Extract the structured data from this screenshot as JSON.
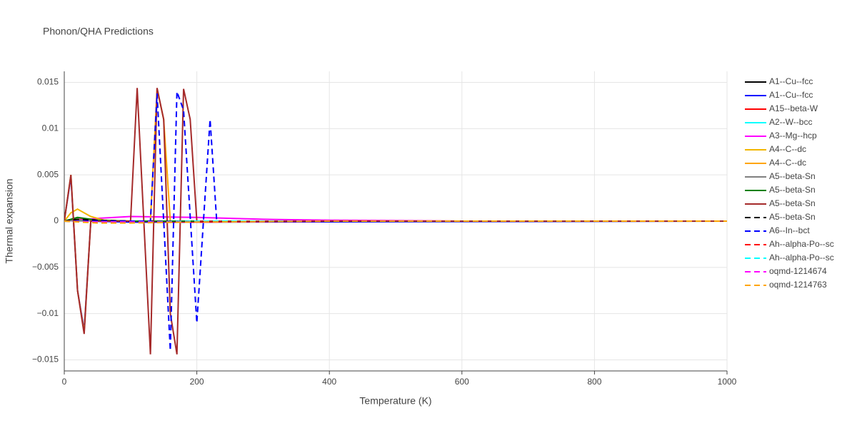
{
  "chart_data": {
    "type": "line",
    "title": "Phonon/QHA Predictions",
    "xlabel": "Temperature (K)",
    "ylabel": "Thermal expansion",
    "xlim": [
      0,
      1000
    ],
    "xticks": [
      0,
      200,
      400,
      600,
      800,
      1000
    ],
    "ylim": [
      -0.0162,
      0.0162
    ],
    "yticks": [
      {
        "value": -0.015,
        "label": "−0.015"
      },
      {
        "value": -0.01,
        "label": "−0.01"
      },
      {
        "value": -0.005,
        "label": "−0.005"
      },
      0,
      0.005,
      0.01,
      0.015
    ],
    "grid": true,
    "legend": "right",
    "series": [
      {
        "name": "A1--Cu--fcc",
        "color": "#000000",
        "dash": "solid",
        "x": [
          0,
          10,
          20,
          50,
          100,
          200,
          400,
          1000
        ],
        "values": [
          0,
          0.0001,
          0.0001,
          0,
          -0.0001,
          -0.0001,
          0,
          0
        ]
      },
      {
        "name": "A1--Cu--fcc",
        "color": "#0000ff",
        "dash": "solid",
        "x": [
          0,
          10,
          20,
          30,
          40,
          100,
          200,
          1000
        ],
        "values": [
          0,
          0.0048,
          -0.0075,
          -0.0118,
          0,
          -0.0001,
          -0.0001,
          0
        ]
      },
      {
        "name": "A15--beta-W",
        "color": "#ff0000",
        "dash": "solid",
        "x": [
          0,
          20,
          50,
          100,
          200,
          400,
          1000
        ],
        "values": [
          0,
          0.0002,
          0.0001,
          0,
          -0.0001,
          0,
          0
        ]
      },
      {
        "name": "A2--W--bcc",
        "color": "#00ffff",
        "dash": "solid",
        "x": [
          0,
          20,
          50,
          100,
          200,
          1000
        ],
        "values": [
          0,
          0.0001,
          0,
          0,
          0,
          0
        ]
      },
      {
        "name": "A3--Mg--hcp",
        "color": "#ff00ff",
        "dash": "solid",
        "x": [
          0,
          20,
          50,
          100,
          200,
          300,
          400,
          600,
          1000
        ],
        "values": [
          0,
          0.0001,
          0.0003,
          0.0005,
          0.0004,
          0.0002,
          0.0001,
          0,
          0
        ]
      },
      {
        "name": "A4--C--dc",
        "color": "#f2b600",
        "dash": "solid",
        "x": [
          0,
          10,
          20,
          30,
          40,
          60,
          100,
          200,
          1000
        ],
        "values": [
          0,
          0.0009,
          0.0013,
          0.0009,
          0.0005,
          0.0001,
          0,
          0,
          0
        ]
      },
      {
        "name": "A4--C--dc",
        "color": "#ffa500",
        "dash": "solid",
        "x": [
          0,
          10,
          20,
          30,
          40,
          130,
          140,
          150,
          160,
          200,
          1000
        ],
        "values": [
          0,
          0.005,
          -0.0075,
          -0.012,
          0,
          0,
          0.0143,
          0.011,
          0,
          0,
          0
        ]
      },
      {
        "name": "A5--beta-Sn",
        "color": "#808080",
        "dash": "solid",
        "x": [
          0,
          20,
          50,
          100,
          200,
          1000
        ],
        "values": [
          0,
          0.0001,
          0,
          0,
          0,
          0
        ]
      },
      {
        "name": "A5--beta-Sn",
        "color": "#008000",
        "dash": "solid",
        "x": [
          0,
          20,
          50,
          100,
          200,
          1000
        ],
        "values": [
          0,
          0.0004,
          0.0001,
          0,
          0,
          0
        ]
      },
      {
        "name": "A5--beta-Sn",
        "color": "#a52a2a",
        "dash": "solid",
        "x": [
          0,
          10,
          20,
          30,
          40,
          100,
          110,
          120,
          130,
          140,
          150,
          160,
          170,
          180,
          190,
          200,
          1000
        ],
        "values": [
          0,
          0.005,
          -0.0075,
          -0.0122,
          0,
          0,
          0.0144,
          0,
          -0.0144,
          0.0144,
          0.011,
          -0.01,
          -0.0144,
          0.0143,
          0.011,
          0,
          0
        ]
      },
      {
        "name": "A5--beta-Sn",
        "color": "#000000",
        "dash": "dash",
        "x": [
          0,
          20,
          50,
          100,
          200,
          1000
        ],
        "values": [
          0,
          0.0002,
          0.0001,
          0,
          0,
          0
        ]
      },
      {
        "name": "A6--In--bct",
        "color": "#0000ff",
        "dash": "dash",
        "x": [
          0,
          130,
          140,
          150,
          160,
          170,
          180,
          190,
          200,
          210,
          220,
          230
        ],
        "values": [
          0,
          0,
          0.0138,
          0,
          -0.014,
          0.014,
          0.012,
          0.0005,
          -0.011,
          0,
          0.011,
          0
        ]
      },
      {
        "name": "Ah--alpha-Po--sc",
        "color": "#ff0000",
        "dash": "dash",
        "x": [
          0,
          50,
          100,
          200,
          400,
          1000
        ],
        "values": [
          0,
          -0.0001,
          -0.0001,
          -0.0001,
          0,
          0
        ]
      },
      {
        "name": "Ah--alpha-Po--sc",
        "color": "#00ffff",
        "dash": "dash",
        "x": [
          0,
          50,
          100,
          200,
          400,
          1000
        ],
        "values": [
          0,
          -0.0001,
          -0.0001,
          0,
          0,
          0
        ]
      },
      {
        "name": "oqmd-1214674",
        "color": "#ff00ff",
        "dash": "dash",
        "x": [
          0,
          50,
          100,
          200,
          400,
          1000
        ],
        "values": [
          0,
          -0.0001,
          -0.0001,
          -0.0001,
          0,
          0
        ]
      },
      {
        "name": "oqmd-1214763",
        "color": "#ffa500",
        "dash": "dash",
        "x": [
          0,
          50,
          100,
          200,
          400,
          1000
        ],
        "values": [
          0,
          -0.0002,
          -0.0002,
          -0.0001,
          0,
          0
        ]
      }
    ]
  }
}
